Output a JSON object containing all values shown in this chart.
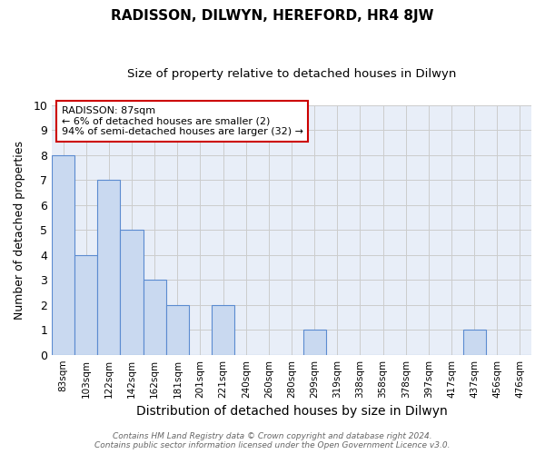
{
  "title": "RADISSON, DILWYN, HEREFORD, HR4 8JW",
  "subtitle": "Size of property relative to detached houses in Dilwyn",
  "xlabel": "Distribution of detached houses by size in Dilwyn",
  "ylabel": "Number of detached properties",
  "categories": [
    "83sqm",
    "103sqm",
    "122sqm",
    "142sqm",
    "162sqm",
    "181sqm",
    "201sqm",
    "221sqm",
    "240sqm",
    "260sqm",
    "280sqm",
    "299sqm",
    "319sqm",
    "338sqm",
    "358sqm",
    "378sqm",
    "397sqm",
    "417sqm",
    "437sqm",
    "456sqm",
    "476sqm"
  ],
  "values": [
    8,
    4,
    7,
    5,
    3,
    2,
    0,
    2,
    0,
    0,
    0,
    1,
    0,
    0,
    0,
    0,
    0,
    0,
    1,
    0,
    0
  ],
  "bar_color": "#c9d9f0",
  "bar_edge_color": "#5b8bd0",
  "ylim": [
    0,
    10
  ],
  "yticks": [
    0,
    1,
    2,
    3,
    4,
    5,
    6,
    7,
    8,
    9,
    10
  ],
  "annotation_line1": "RADISSON: 87sqm",
  "annotation_line2": "← 6% of detached houses are smaller (2)",
  "annotation_line3": "94% of semi-detached houses are larger (32) →",
  "annotation_box_color": "white",
  "annotation_box_edge_color": "#cc0000",
  "grid_color": "#cccccc",
  "background_color": "#e8eef8",
  "title_fontsize": 11,
  "subtitle_fontsize": 9.5,
  "footer": "Contains HM Land Registry data © Crown copyright and database right 2024.\nContains public sector information licensed under the Open Government Licence v3.0."
}
